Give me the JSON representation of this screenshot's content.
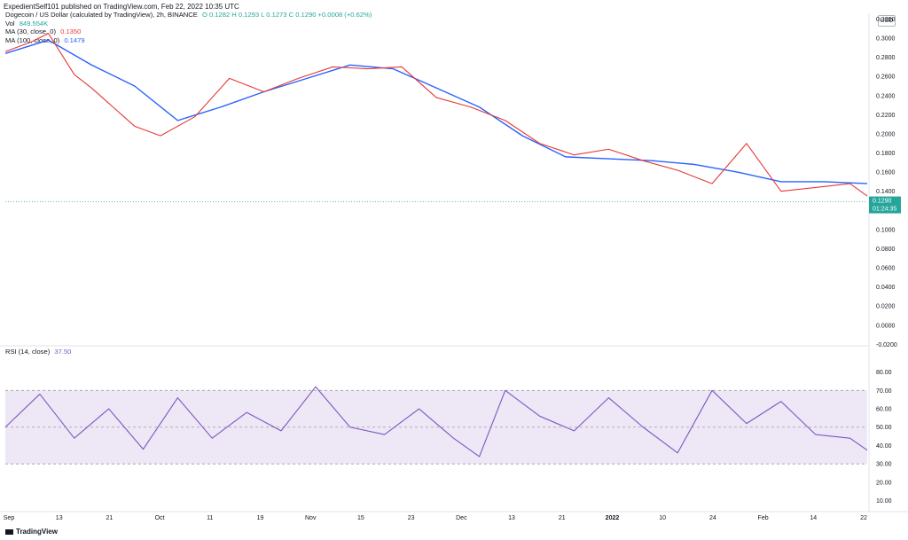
{
  "header": {
    "published": "ExpedientSelf101 published on TradingView.com, Feb 22, 2022 10:35 UTC"
  },
  "legend": {
    "symbol": "Dogecoin / US Dollar (calculated by TradingView), 2h, BINANCE",
    "ohlc": "O 0.1282  H 0.1293  L 0.1273  C 0.1290  +0.0008 (+0.62%)",
    "vol_label": "Vol",
    "vol_value": "849.554K",
    "ma30_label": "MA (30, close, 0)",
    "ma30_value": "0.1350",
    "ma100_label": "MA (100, close, 0)",
    "ma100_value": "0.1479",
    "rsi_label": "RSI (14, close)",
    "rsi_value": "37.50"
  },
  "price_axis": {
    "currency": "USD",
    "last_price": "0.1290",
    "countdown": "01:24:35"
  },
  "footer": {
    "brand": "TradingView"
  },
  "colors": {
    "up": "#26a69a",
    "down": "#ef5350",
    "ma30": "#e53935",
    "ma100": "#2962ff",
    "rsi": "#7e57c2",
    "rsi_band": "#ede7f6",
    "last": "#26a69a"
  },
  "chart_data": [
    {
      "type": "line",
      "title": "Dogecoin / US Dollar (calculated by TradingView), 2h, BINANCE",
      "y_ticks": [
        "0.3200",
        "0.3000",
        "0.2800",
        "0.2600",
        "0.2400",
        "0.2200",
        "0.2000",
        "0.1800",
        "0.1600",
        "0.1400",
        "0.1200",
        "0.1000",
        "0.0800",
        "0.0600",
        "0.0400",
        "0.0200",
        "0.0000",
        "-0.0200"
      ],
      "ylim": [
        -0.0215,
        0.326
      ],
      "x_ticks": [
        "Sep",
        "13",
        "21",
        "Oct",
        "11",
        "19",
        "Nov",
        "15",
        "23",
        "Dec",
        "13",
        "21",
        "2022",
        "10",
        "24",
        "Feb",
        "14",
        "22"
      ],
      "series": [
        {
          "name": "MA (30, close, 0)",
          "x": [
            0,
            3,
            5,
            8,
            10,
            12,
            15,
            18,
            22,
            26,
            30,
            34,
            38,
            42,
            46,
            50,
            54,
            58,
            62,
            66,
            70,
            74,
            78,
            82,
            86,
            90,
            94,
            98,
            100
          ],
          "values": [
            0.286,
            0.296,
            0.305,
            0.262,
            0.248,
            0.232,
            0.208,
            0.198,
            0.218,
            0.258,
            0.244,
            0.258,
            0.27,
            0.268,
            0.27,
            0.238,
            0.228,
            0.214,
            0.19,
            0.178,
            0.184,
            0.172,
            0.162,
            0.148,
            0.19,
            0.14,
            0.144,
            0.148,
            0.135
          ]
        },
        {
          "name": "MA (100, close, 0)",
          "x": [
            0,
            5,
            10,
            15,
            20,
            25,
            30,
            35,
            40,
            45,
            50,
            55,
            60,
            65,
            70,
            75,
            80,
            85,
            90,
            95,
            100
          ],
          "values": [
            0.284,
            0.298,
            0.272,
            0.25,
            0.214,
            0.228,
            0.244,
            0.258,
            0.272,
            0.268,
            0.248,
            0.228,
            0.198,
            0.176,
            0.174,
            0.172,
            0.168,
            0.16,
            0.15,
            0.15,
            0.148
          ]
        }
      ],
      "last_value": 0.129
    },
    {
      "type": "line",
      "title": "RSI (14, close)",
      "y_ticks": [
        "80.00",
        "70.00",
        "60.00",
        "50.00",
        "40.00",
        "30.00",
        "20.00",
        "10.00"
      ],
      "ylim": [
        5,
        88
      ],
      "bands": [
        30,
        50,
        70
      ],
      "series": [
        {
          "name": "RSI (14, close)",
          "x": [
            0,
            4,
            8,
            12,
            16,
            20,
            24,
            28,
            32,
            36,
            40,
            44,
            48,
            52,
            55,
            58,
            62,
            66,
            70,
            74,
            78,
            82,
            86,
            90,
            94,
            98,
            100
          ],
          "values": [
            50,
            68,
            44,
            60,
            38,
            66,
            44,
            58,
            48,
            72,
            50,
            46,
            60,
            44,
            34,
            70,
            56,
            48,
            66,
            50,
            36,
            70,
            52,
            64,
            46,
            44,
            37.5
          ]
        }
      ]
    }
  ]
}
